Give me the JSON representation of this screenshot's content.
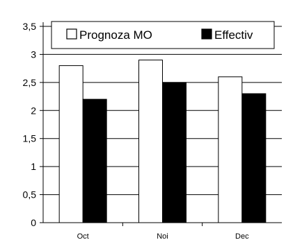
{
  "chart_data": {
    "type": "bar",
    "title": "",
    "xlabel": "",
    "ylabel": "",
    "categories": [
      "Oct",
      "Noi",
      "Dec"
    ],
    "series": [
      {
        "name": "Prognoza MO",
        "values": [
          2.8,
          2.9,
          2.6
        ],
        "color": "#ffffff"
      },
      {
        "name": "Effectiv",
        "values": [
          2.2,
          2.5,
          2.3
        ],
        "color": "#000000"
      }
    ],
    "ylim": [
      0,
      3.5
    ],
    "yticks": [
      "0",
      "0,5",
      "1",
      "1,5",
      "2",
      "2,5",
      "3",
      "3,5"
    ],
    "grid": true,
    "legend_position": "top"
  }
}
